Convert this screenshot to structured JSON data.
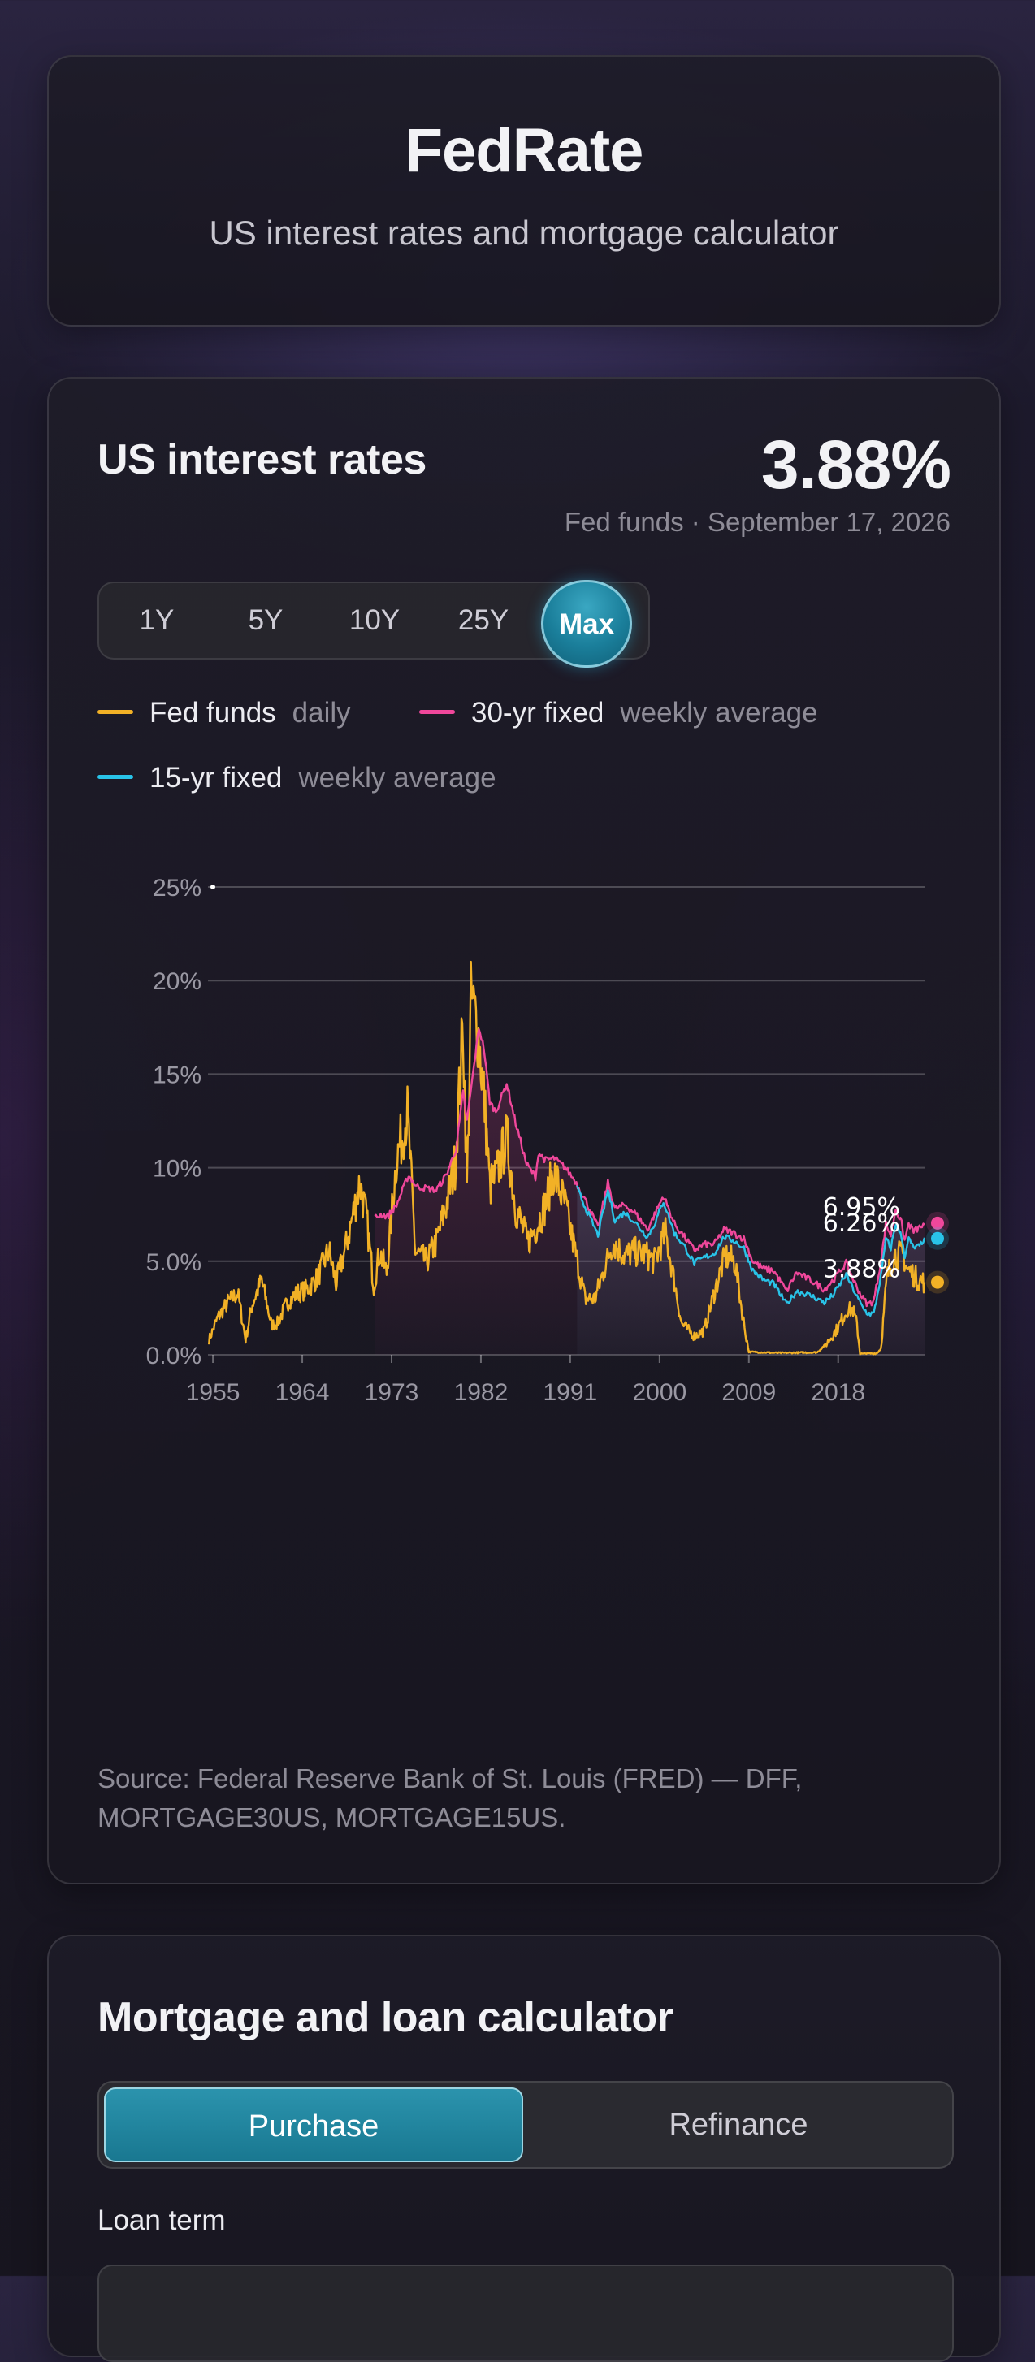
{
  "app": {
    "title": "FedRate",
    "subtitle": "US interest rates and mortgage calculator"
  },
  "rates": {
    "heading": "US interest rates",
    "headline_value": "3.88%",
    "headline_caption": "Fed funds · September 17, 2026",
    "ranges": [
      "1Y",
      "5Y",
      "10Y",
      "25Y",
      "Max"
    ],
    "selected_range": "Max",
    "legend": [
      {
        "name": "Fed funds",
        "freq": "daily",
        "color": "#f2b126"
      },
      {
        "name": "30-yr fixed",
        "freq": "weekly average",
        "color": "#f0479b"
      },
      {
        "name": "15-yr fixed",
        "freq": "weekly average",
        "color": "#29c3e8"
      }
    ],
    "source": "Source: Federal Reserve Bank of St. Louis (FRED) — DFF, MORTGAGE30US, MORTGAGE15US."
  },
  "chart_data": {
    "type": "line",
    "xlim": [
      1954.5,
      2026.7
    ],
    "ylim": [
      0,
      25
    ],
    "x_ticks": [
      "1955",
      "1964",
      "1973",
      "1982",
      "1991",
      "2000",
      "2009",
      "2018"
    ],
    "y_ticks": [
      "0.0%",
      "5.0%",
      "10%",
      "15%",
      "20%",
      "25%"
    ],
    "grid": true,
    "end_labels": [
      {
        "series": "30-yr fixed",
        "text": "6.95%",
        "value": 6.95
      },
      {
        "series": "15-yr fixed",
        "text": "6.26%",
        "value": 6.26
      },
      {
        "series": "Fed funds",
        "text": "3.88%",
        "value": 3.88
      }
    ],
    "series": [
      {
        "name": "Fed funds",
        "color": "#f2b126",
        "points": [
          [
            1954.6,
            0.8
          ],
          [
            1955.5,
            2.0
          ],
          [
            1956.5,
            2.8
          ],
          [
            1957.5,
            3.3
          ],
          [
            1958.3,
            0.8
          ],
          [
            1958.9,
            2.6
          ],
          [
            1959.9,
            4.0
          ],
          [
            1960.9,
            1.6
          ],
          [
            1961.5,
            1.7
          ],
          [
            1962.5,
            2.8
          ],
          [
            1963.5,
            3.3
          ],
          [
            1964.5,
            3.5
          ],
          [
            1965.5,
            4.1
          ],
          [
            1966.7,
            5.6
          ],
          [
            1967.4,
            3.8
          ],
          [
            1968.5,
            6.0
          ],
          [
            1969.8,
            9.2
          ],
          [
            1970.5,
            7.2
          ],
          [
            1971.2,
            3.7
          ],
          [
            1971.8,
            5.5
          ],
          [
            1972.5,
            4.4
          ],
          [
            1973.5,
            10.5
          ],
          [
            1974.6,
            12.9
          ],
          [
            1975.4,
            5.5
          ],
          [
            1976.5,
            5.0
          ],
          [
            1977.5,
            6.0
          ],
          [
            1978.5,
            8.0
          ],
          [
            1979.4,
            10.2
          ],
          [
            1980.2,
            17.6
          ],
          [
            1980.6,
            9.0
          ],
          [
            1981.0,
            19.0
          ],
          [
            1981.6,
            17.8
          ],
          [
            1982.3,
            14.0
          ],
          [
            1982.9,
            9.0
          ],
          [
            1983.5,
            9.5
          ],
          [
            1984.6,
            11.6
          ],
          [
            1985.5,
            7.9
          ],
          [
            1986.7,
            6.0
          ],
          [
            1987.7,
            7.0
          ],
          [
            1988.5,
            8.0
          ],
          [
            1989.3,
            9.8
          ],
          [
            1990.5,
            8.0
          ],
          [
            1991.5,
            5.5
          ],
          [
            1992.5,
            3.0
          ],
          [
            1993.5,
            3.0
          ],
          [
            1994.5,
            4.7
          ],
          [
            1995.3,
            6.0
          ],
          [
            1996.5,
            5.3
          ],
          [
            1997.5,
            5.5
          ],
          [
            1998.5,
            5.4
          ],
          [
            1999.5,
            5.0
          ],
          [
            2000.6,
            6.5
          ],
          [
            2001.5,
            3.9
          ],
          [
            2002.2,
            1.7
          ],
          [
            2003.5,
            1.0
          ],
          [
            2004.5,
            1.3
          ],
          [
            2005.5,
            3.3
          ],
          [
            2006.6,
            5.25
          ],
          [
            2007.6,
            5.0
          ],
          [
            2008.4,
            2.0
          ],
          [
            2009.0,
            0.16
          ],
          [
            2012.0,
            0.1
          ],
          [
            2015.9,
            0.13
          ],
          [
            2016.9,
            0.65
          ],
          [
            2017.9,
            1.4
          ],
          [
            2018.9,
            2.4
          ],
          [
            2019.5,
            2.4
          ],
          [
            2019.9,
            1.6
          ],
          [
            2020.2,
            0.05
          ],
          [
            2021.9,
            0.08
          ],
          [
            2022.3,
            0.33
          ],
          [
            2022.9,
            4.1
          ],
          [
            2023.6,
            5.33
          ],
          [
            2024.6,
            5.33
          ],
          [
            2024.9,
            4.6
          ],
          [
            2025.5,
            4.33
          ],
          [
            2025.9,
            4.1
          ],
          [
            2026.7,
            3.88
          ]
        ]
      },
      {
        "name": "30-yr fixed",
        "color": "#f0479b",
        "points": [
          [
            1971.3,
            7.3
          ],
          [
            1971.9,
            7.5
          ],
          [
            1972.6,
            7.4
          ],
          [
            1973.5,
            8.0
          ],
          [
            1974.7,
            9.6
          ],
          [
            1975.5,
            9.0
          ],
          [
            1976.5,
            8.9
          ],
          [
            1977.5,
            8.8
          ],
          [
            1978.5,
            9.6
          ],
          [
            1979.5,
            11.0
          ],
          [
            1980.2,
            14.0
          ],
          [
            1980.6,
            12.5
          ],
          [
            1981.8,
            17.5
          ],
          [
            1982.3,
            16.4
          ],
          [
            1982.9,
            13.5
          ],
          [
            1983.5,
            13.0
          ],
          [
            1984.6,
            14.5
          ],
          [
            1985.5,
            12.4
          ],
          [
            1986.6,
            10.2
          ],
          [
            1987.5,
            9.5
          ],
          [
            1987.8,
            10.8
          ],
          [
            1988.5,
            10.4
          ],
          [
            1989.4,
            10.5
          ],
          [
            1990.5,
            10.0
          ],
          [
            1991.5,
            9.3
          ],
          [
            1992.5,
            8.3
          ],
          [
            1993.8,
            6.8
          ],
          [
            1994.8,
            9.2
          ],
          [
            1995.5,
            7.8
          ],
          [
            1996.5,
            8.0
          ],
          [
            1997.5,
            7.6
          ],
          [
            1998.8,
            6.7
          ],
          [
            1999.5,
            7.5
          ],
          [
            2000.4,
            8.5
          ],
          [
            2001.5,
            7.0
          ],
          [
            2002.5,
            6.3
          ],
          [
            2003.5,
            5.6
          ],
          [
            2004.5,
            5.9
          ],
          [
            2005.5,
            5.9
          ],
          [
            2006.5,
            6.7
          ],
          [
            2007.5,
            6.5
          ],
          [
            2008.5,
            6.2
          ],
          [
            2009.4,
            5.0
          ],
          [
            2010.5,
            4.6
          ],
          [
            2011.5,
            4.5
          ],
          [
            2012.8,
            3.4
          ],
          [
            2013.8,
            4.4
          ],
          [
            2014.5,
            4.2
          ],
          [
            2015.5,
            3.9
          ],
          [
            2016.6,
            3.5
          ],
          [
            2017.5,
            4.0
          ],
          [
            2018.8,
            4.9
          ],
          [
            2019.8,
            3.7
          ],
          [
            2020.5,
            3.0
          ],
          [
            2021.0,
            2.7
          ],
          [
            2021.6,
            2.9
          ],
          [
            2022.4,
            5.3
          ],
          [
            2022.8,
            7.0
          ],
          [
            2023.3,
            6.4
          ],
          [
            2023.8,
            7.8
          ],
          [
            2024.4,
            7.0
          ],
          [
            2024.7,
            6.1
          ],
          [
            2025.1,
            7.0
          ],
          [
            2025.6,
            6.6
          ],
          [
            2026.2,
            6.8
          ],
          [
            2026.7,
            6.95
          ]
        ]
      },
      {
        "name": "15-yr fixed",
        "color": "#29c3e8",
        "points": [
          [
            1991.7,
            8.9
          ],
          [
            1992.5,
            7.9
          ],
          [
            1993.8,
            6.4
          ],
          [
            1994.8,
            8.8
          ],
          [
            1995.5,
            7.2
          ],
          [
            1996.5,
            7.6
          ],
          [
            1997.5,
            7.1
          ],
          [
            1998.8,
            6.3
          ],
          [
            1999.5,
            7.0
          ],
          [
            2000.4,
            8.2
          ],
          [
            2001.5,
            6.5
          ],
          [
            2002.5,
            5.8
          ],
          [
            2003.5,
            4.9
          ],
          [
            2004.5,
            5.2
          ],
          [
            2005.5,
            5.4
          ],
          [
            2006.5,
            6.3
          ],
          [
            2007.5,
            6.1
          ],
          [
            2008.5,
            5.7
          ],
          [
            2009.4,
            4.5
          ],
          [
            2010.5,
            4.0
          ],
          [
            2011.5,
            3.8
          ],
          [
            2012.8,
            2.7
          ],
          [
            2013.8,
            3.4
          ],
          [
            2014.5,
            3.3
          ],
          [
            2015.5,
            3.1
          ],
          [
            2016.6,
            2.8
          ],
          [
            2017.5,
            3.2
          ],
          [
            2018.8,
            4.3
          ],
          [
            2019.8,
            3.2
          ],
          [
            2020.5,
            2.5
          ],
          [
            2021.0,
            2.2
          ],
          [
            2021.6,
            2.2
          ],
          [
            2022.4,
            4.5
          ],
          [
            2022.8,
            6.2
          ],
          [
            2023.3,
            5.7
          ],
          [
            2023.8,
            7.0
          ],
          [
            2024.4,
            6.3
          ],
          [
            2024.7,
            5.3
          ],
          [
            2025.1,
            6.2
          ],
          [
            2025.6,
            5.7
          ],
          [
            2026.2,
            5.8
          ],
          [
            2026.7,
            6.26
          ]
        ]
      }
    ]
  },
  "calculator": {
    "heading": "Mortgage and loan calculator",
    "modes": [
      "Purchase",
      "Refinance"
    ],
    "selected_mode": "Purchase",
    "loan_term_label": "Loan term"
  }
}
